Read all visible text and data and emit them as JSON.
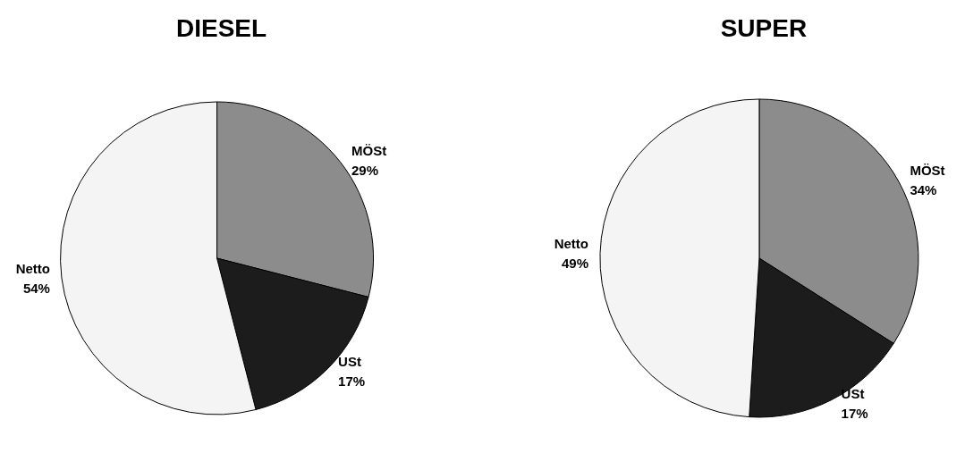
{
  "chart_data": [
    {
      "type": "pie",
      "title": "DIESEL",
      "categories": [
        "MÖSt",
        "USt",
        "Netto"
      ],
      "values": [
        29,
        17,
        54
      ],
      "value_labels": [
        "29%",
        "17%",
        "54%"
      ],
      "colors": [
        "#8c8c8c",
        "#1c1c1c",
        "#f4f4f4"
      ]
    },
    {
      "type": "pie",
      "title": "SUPER",
      "categories": [
        "MÖSt",
        "USt",
        "Netto"
      ],
      "values": [
        34,
        17,
        49
      ],
      "value_labels": [
        "34%",
        "17%",
        "49%"
      ],
      "colors": [
        "#8c8c8c",
        "#1c1c1c",
        "#f4f4f4"
      ]
    }
  ]
}
